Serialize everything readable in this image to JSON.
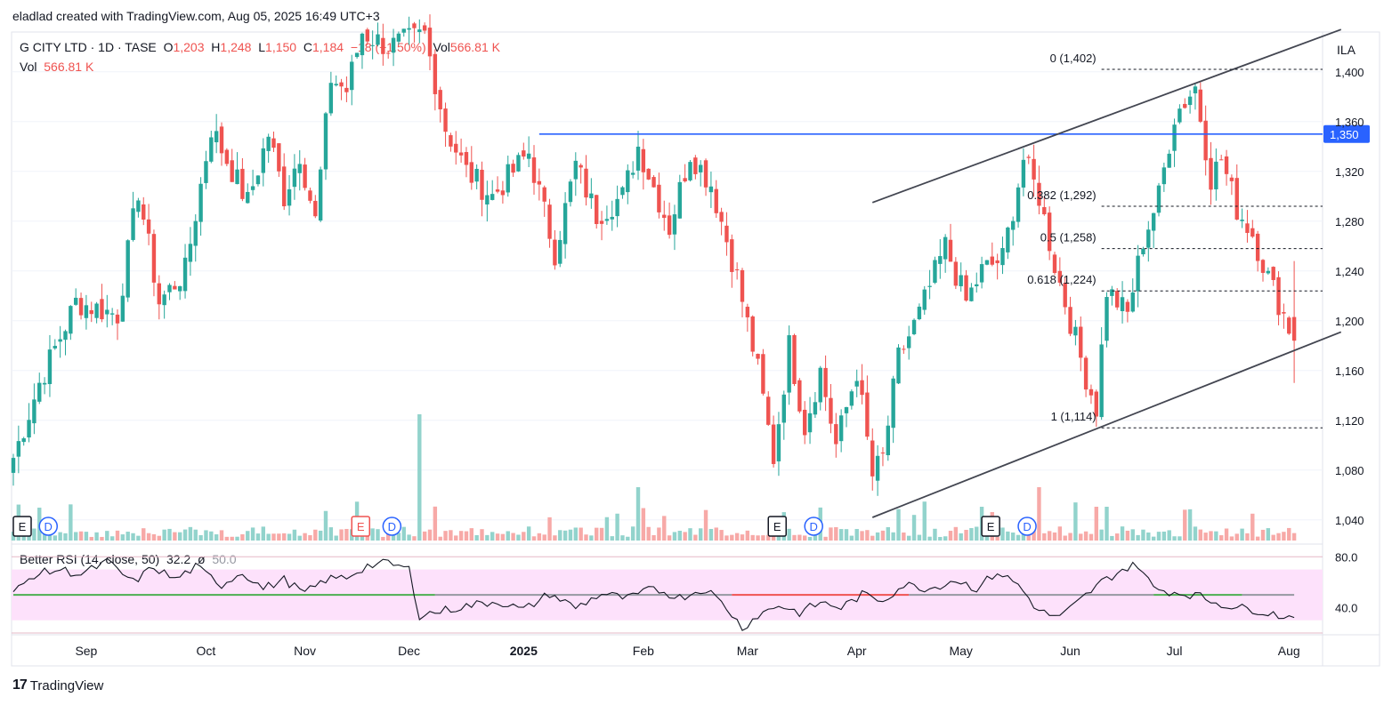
{
  "header": {
    "byline": "eladlad created with TradingView.com, Aug 05, 2025 16:49 UTC+3"
  },
  "legend": {
    "symbol": "G CITY LTD · 1D · TASE",
    "o_label": "O",
    "o_value": "1,203",
    "h_label": "H",
    "h_value": "1,248",
    "l_label": "L",
    "l_value": "1,150",
    "c_label": "C",
    "c_value": "1,184",
    "change": "−18 (−1.50%)",
    "vol_label": "Vol",
    "vol_value": "566.81 K",
    "vol2_label": "Vol",
    "vol2_value": "566.81 K"
  },
  "rsi_legend": {
    "name": "Better RSI (14, close, 50)",
    "value": "32.2",
    "sym": "ø",
    "mid": "50.0"
  },
  "footer": {
    "brand": "TradingView",
    "logo": "17"
  },
  "colors": {
    "up": "#26a69a",
    "down": "#ef5350",
    "up_vol": "#92d3cc",
    "down_vol": "#f7a9a7",
    "level_line": "#2962ff",
    "channel": "#434651",
    "rsi_line": "#131722",
    "rsi_band": "#fde1fb"
  },
  "chart_data": {
    "type": "candlestick",
    "symbol": "G CITY LTD",
    "interval": "1D",
    "currency_label": "ILA",
    "y_ticks": [
      1040,
      1080,
      1120,
      1160,
      1200,
      1240,
      1280,
      1320,
      1360,
      1400
    ],
    "y_tick_labels": [
      "1,040",
      "1,080",
      "1,120",
      "1,160",
      "1,200",
      "1,240",
      "1,280",
      "1,320",
      "1,360",
      "1,400"
    ],
    "ylim": [
      1022,
      1432
    ],
    "x_labels": [
      {
        "label": "Sep",
        "index": 14,
        "bold": false
      },
      {
        "label": "Oct",
        "index": 37,
        "bold": false
      },
      {
        "label": "Nov",
        "index": 56,
        "bold": false
      },
      {
        "label": "Dec",
        "index": 76,
        "bold": false
      },
      {
        "label": "2025",
        "index": 98,
        "bold": true
      },
      {
        "label": "Feb",
        "index": 121,
        "bold": false
      },
      {
        "label": "Mar",
        "index": 141,
        "bold": false
      },
      {
        "label": "Apr",
        "index": 162,
        "bold": false
      },
      {
        "label": "May",
        "index": 182,
        "bold": false
      },
      {
        "label": "Jun",
        "index": 203,
        "bold": false
      },
      {
        "label": "Jul",
        "index": 223,
        "bold": false
      },
      {
        "label": "Aug",
        "index": 245,
        "bold": false
      }
    ],
    "horizontal_level": {
      "value": 1350,
      "label": "1,350",
      "from_index": 101
    },
    "channel": [
      {
        "from": [
          165,
          1295
        ],
        "to": [
          255,
          1434
        ]
      },
      {
        "from": [
          165,
          1042
        ],
        "to": [
          255,
          1191
        ]
      }
    ],
    "fibonacci": {
      "from_index": 209,
      "levels": [
        {
          "ratio_label": "0 (1,402)",
          "value": 1402
        },
        {
          "ratio_label": "0.382 (1,292)",
          "value": 1292
        },
        {
          "ratio_label": "0.5 (1,258)",
          "value": 1258
        },
        {
          "ratio_label": "0.618 (1,224)",
          "value": 1224
        },
        {
          "ratio_label": "1 (1,114)",
          "value": 1114
        }
      ]
    },
    "anchors": [
      [
        0,
        1090
      ],
      [
        5,
        1150
      ],
      [
        12,
        1215
      ],
      [
        20,
        1205
      ],
      [
        24,
        1305
      ],
      [
        28,
        1215
      ],
      [
        33,
        1240
      ],
      [
        38,
        1355
      ],
      [
        45,
        1295
      ],
      [
        49,
        1350
      ],
      [
        52,
        1300
      ],
      [
        55,
        1335
      ],
      [
        58,
        1280
      ],
      [
        61,
        1395
      ],
      [
        64,
        1385
      ],
      [
        67,
        1432
      ],
      [
        72,
        1420
      ],
      [
        79,
        1430
      ],
      [
        83,
        1355
      ],
      [
        87,
        1320
      ],
      [
        92,
        1300
      ],
      [
        99,
        1335
      ],
      [
        104,
        1255
      ],
      [
        108,
        1325
      ],
      [
        112,
        1285
      ],
      [
        117,
        1300
      ],
      [
        120,
        1340
      ],
      [
        126,
        1275
      ],
      [
        130,
        1335
      ],
      [
        134,
        1310
      ],
      [
        139,
        1235
      ],
      [
        143,
        1160
      ],
      [
        146,
        1090
      ],
      [
        149,
        1180
      ],
      [
        152,
        1115
      ],
      [
        155,
        1160
      ],
      [
        158,
        1100
      ],
      [
        162,
        1160
      ],
      [
        165,
        1075
      ],
      [
        167,
        1090
      ],
      [
        170,
        1170
      ],
      [
        174,
        1205
      ],
      [
        179,
        1260
      ],
      [
        183,
        1215
      ],
      [
        186,
        1240
      ],
      [
        190,
        1250
      ],
      [
        194,
        1330
      ],
      [
        197,
        1300
      ],
      [
        200,
        1245
      ],
      [
        203,
        1200
      ],
      [
        206,
        1155
      ],
      [
        208,
        1130
      ],
      [
        210,
        1225
      ],
      [
        214,
        1205
      ],
      [
        217,
        1265
      ],
      [
        220,
        1300
      ],
      [
        223,
        1365
      ],
      [
        227,
        1388
      ],
      [
        230,
        1315
      ],
      [
        232,
        1330
      ],
      [
        235,
        1290
      ],
      [
        238,
        1270
      ],
      [
        241,
        1235
      ],
      [
        244,
        1205
      ],
      [
        246,
        1184
      ]
    ],
    "volume_events": [
      {
        "label": "E",
        "index": 0,
        "style": "earnings"
      },
      {
        "label": "D",
        "index": 5,
        "style": "dividend"
      },
      {
        "label": "E",
        "index": 65,
        "style": "earnings-red"
      },
      {
        "label": "D",
        "index": 71,
        "style": "dividend"
      },
      {
        "label": "E",
        "index": 145,
        "style": "earnings"
      },
      {
        "label": "D",
        "index": 152,
        "style": "dividend"
      },
      {
        "label": "E",
        "index": 186,
        "style": "earnings"
      },
      {
        "label": "D",
        "index": 193,
        "style": "dividend"
      }
    ],
    "rsi": {
      "name": "Better RSI",
      "length": 14,
      "source": "close",
      "mid_level": 50,
      "last": 32.2,
      "ylim": [
        20,
        90
      ],
      "y_tick_labels": [
        "80.0",
        "40.0"
      ],
      "anchors": [
        [
          0,
          51
        ],
        [
          4,
          66
        ],
        [
          9,
          70
        ],
        [
          13,
          66
        ],
        [
          18,
          76
        ],
        [
          23,
          60
        ],
        [
          27,
          72
        ],
        [
          31,
          62
        ],
        [
          35,
          72
        ],
        [
          40,
          58
        ],
        [
          44,
          68
        ],
        [
          48,
          55
        ],
        [
          52,
          62
        ],
        [
          56,
          51
        ],
        [
          60,
          62
        ],
        [
          64,
          64
        ],
        [
          68,
          73
        ],
        [
          72,
          75
        ],
        [
          76,
          70
        ],
        [
          78,
          34
        ],
        [
          83,
          38
        ],
        [
          88,
          42
        ],
        [
          93,
          45
        ],
        [
          98,
          38
        ],
        [
          103,
          51
        ],
        [
          108,
          40
        ],
        [
          113,
          51
        ],
        [
          118,
          47
        ],
        [
          123,
          55
        ],
        [
          128,
          48
        ],
        [
          133,
          55
        ],
        [
          137,
          40
        ],
        [
          140,
          24
        ],
        [
          143,
          34
        ],
        [
          147,
          42
        ],
        [
          151,
          36
        ],
        [
          155,
          44
        ],
        [
          159,
          40
        ],
        [
          163,
          50
        ],
        [
          167,
          46
        ],
        [
          171,
          58
        ],
        [
          176,
          55
        ],
        [
          181,
          62
        ],
        [
          185,
          55
        ],
        [
          189,
          68
        ],
        [
          193,
          58
        ],
        [
          197,
          37
        ],
        [
          201,
          32
        ],
        [
          205,
          46
        ],
        [
          209,
          60
        ],
        [
          213,
          70
        ],
        [
          216,
          74
        ],
        [
          219,
          55
        ],
        [
          223,
          52
        ],
        [
          227,
          50
        ],
        [
          231,
          44
        ],
        [
          235,
          40
        ],
        [
          239,
          38
        ],
        [
          243,
          34
        ],
        [
          246,
          32.2
        ]
      ]
    }
  }
}
